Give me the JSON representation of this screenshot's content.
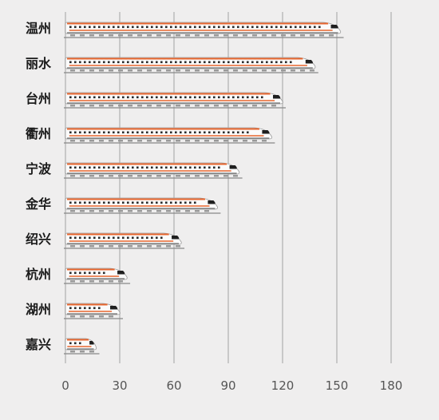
{
  "chart_data": {
    "type": "bar",
    "orientation": "horizontal",
    "mark_style": "high-speed-train",
    "categories": [
      "温州",
      "丽水",
      "台州",
      "衢州",
      "宁波",
      "金华",
      "绍兴",
      "杭州",
      "湖州",
      "嘉兴"
    ],
    "values": [
      152,
      138,
      120,
      114,
      96,
      84,
      64,
      34,
      30,
      17
    ],
    "x_ticks": [
      "0",
      "30",
      "60",
      "90",
      "120",
      "150",
      "180"
    ],
    "xlim": [
      0,
      180
    ],
    "grid": true,
    "title": "",
    "xlabel": "",
    "ylabel": ""
  },
  "colors": {
    "background": "#efeeee",
    "gridline": "#c8c8c8",
    "train_body": "#fbfbfb",
    "train_stripe": "#e8662e",
    "train_window": "#2b2b2b",
    "train_nose": "#1f1f1f",
    "track": "#888888"
  }
}
